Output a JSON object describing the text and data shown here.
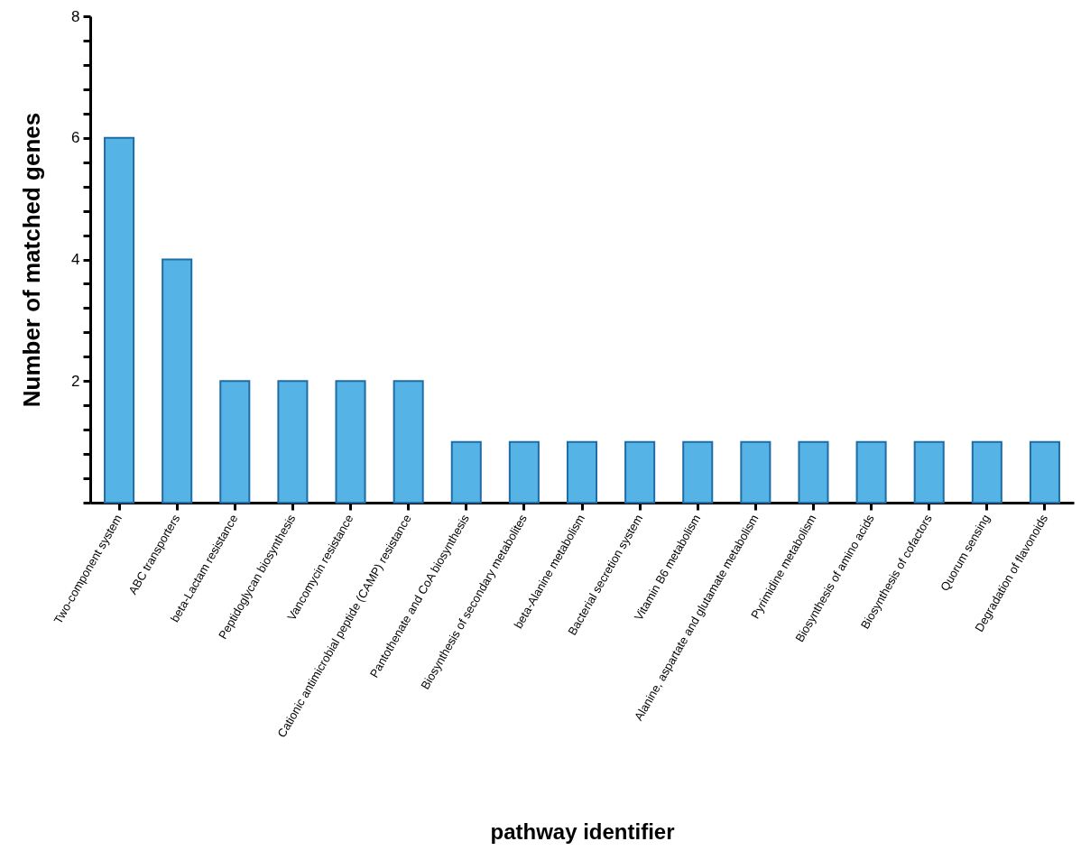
{
  "chart_data": {
    "type": "bar",
    "xlabel": "pathway identifier",
    "ylabel": "Number of matched genes",
    "categories": [
      "Two-component system",
      "ABC transporters",
      "beta-Lactam resistance",
      "Peptidoglycan biosynthesis",
      "Vancomycin resistance",
      "Cationic antimicrobial peptide (CAMP) resistance",
      "Pantothenate and CoA biosynthesis",
      "Biosynthesis of secondary metabolites",
      "beta-Alanine metabolism",
      "Bacterial secretion system",
      "Vitamin B6 metabolism",
      "Alanine, aspartate and glutamate metabolism",
      "Pyrimidine metabolism",
      "Biosynthesis of amino acids",
      "Biosynthesis of cofactors",
      "Quorum sensing",
      "Degradation of flavonoids"
    ],
    "values": [
      6,
      4,
      2,
      2,
      2,
      2,
      1,
      1,
      1,
      1,
      1,
      1,
      1,
      1,
      1,
      1,
      1
    ],
    "color": "#56b3e6",
    "ylim": [
      0,
      8
    ],
    "yticks": [
      {
        "value": 0,
        "label": null
      },
      {
        "value": 0.4,
        "label": null
      },
      {
        "value": 0.8,
        "label": null
      },
      {
        "value": 1.2,
        "label": null
      },
      {
        "value": 1.6,
        "label": null
      },
      2,
      {
        "value": 2.4,
        "label": null
      },
      {
        "value": 2.8,
        "label": null
      },
      {
        "value": 3.2,
        "label": null
      },
      {
        "value": 3.6,
        "label": null
      },
      4,
      {
        "value": 4.4,
        "label": null
      },
      {
        "value": 4.8,
        "label": null
      },
      {
        "value": 5.2,
        "label": null
      },
      {
        "value": 5.6,
        "label": null
      },
      6,
      {
        "value": 6.4,
        "label": null
      },
      {
        "value": 6.8,
        "label": null
      },
      {
        "value": 7.2,
        "label": null
      },
      {
        "value": 7.6,
        "label": null
      },
      8
    ],
    "grid": false
  }
}
